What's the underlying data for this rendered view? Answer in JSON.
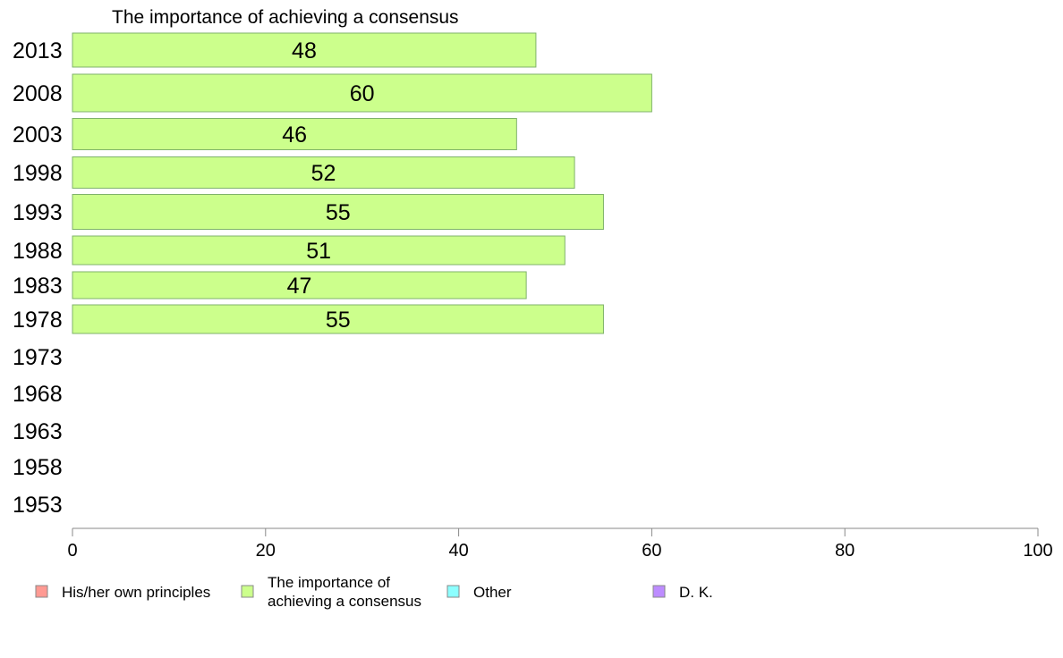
{
  "chart_data": {
    "type": "bar",
    "orientation": "horizontal",
    "title": "The importance of achieving a consensus",
    "categories": [
      "2013",
      "2008",
      "2003",
      "1998",
      "1993",
      "1988",
      "1983",
      "1978",
      "1973",
      "1968",
      "1963",
      "1958",
      "1953"
    ],
    "series": [
      {
        "name": "The importance of achieving a consensus",
        "color": "#ccff8c",
        "values": [
          48,
          60,
          46,
          52,
          55,
          51,
          47,
          55,
          null,
          null,
          null,
          null,
          null
        ],
        "labels": [
          "48",
          "60",
          "46",
          "52",
          "55",
          "51",
          "47",
          "55",
          "",
          "",
          "",
          "",
          ""
        ]
      }
    ],
    "xlim": [
      0,
      100
    ],
    "xticks": [
      "0",
      "20",
      "40",
      "60",
      "80",
      "100"
    ],
    "grid": false,
    "legend_position": "bottom",
    "legend": [
      {
        "lines": [
          "His/her own principles"
        ],
        "color": "#ff9a93"
      },
      {
        "lines": [
          "The importance of",
          "achieving a consensus"
        ],
        "color": "#ccff8c"
      },
      {
        "lines": [
          "Other"
        ],
        "color": "#8cffff"
      },
      {
        "lines": [
          "D. K."
        ],
        "color": "#bd8cff"
      }
    ]
  }
}
